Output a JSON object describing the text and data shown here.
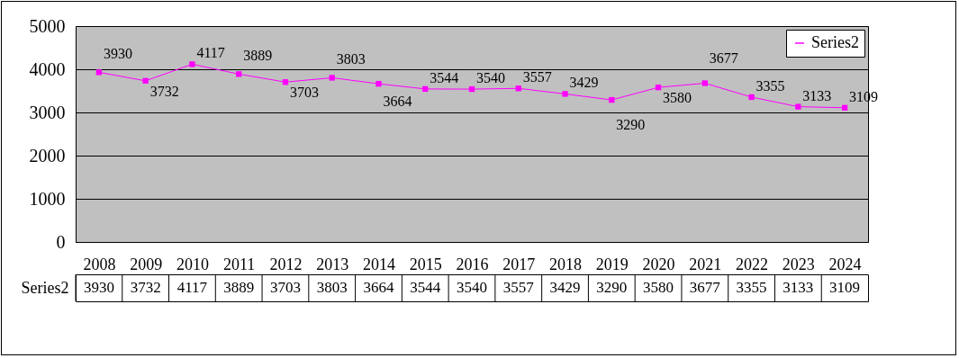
{
  "chart_data": {
    "type": "line",
    "categories": [
      "2008",
      "2009",
      "2010",
      "2011",
      "2012",
      "2013",
      "2014",
      "2015",
      "2016",
      "2017",
      "2018",
      "2019",
      "2020",
      "2021",
      "2022",
      "2023",
      "2024"
    ],
    "series": [
      {
        "name": "Series2",
        "color": "#ff00ff",
        "values": [
          3930,
          3732,
          4117,
          3889,
          3703,
          3803,
          3664,
          3544,
          3540,
          3557,
          3429,
          3290,
          3580,
          3677,
          3355,
          3133,
          3109
        ],
        "value_labels": [
          "3930",
          "3732",
          "4117",
          "3889",
          "3703",
          "3803",
          "3664",
          "3544",
          "3540",
          "3557",
          "3429",
          "3290",
          "3580",
          "3677",
          "3355",
          "3133",
          "3109"
        ]
      }
    ],
    "ylim": [
      0,
      5000
    ],
    "yticks": [
      0,
      1000,
      2000,
      3000,
      4000,
      5000
    ],
    "grid": "y",
    "legend": "top right",
    "marker": "square",
    "data_labels": true
  }
}
